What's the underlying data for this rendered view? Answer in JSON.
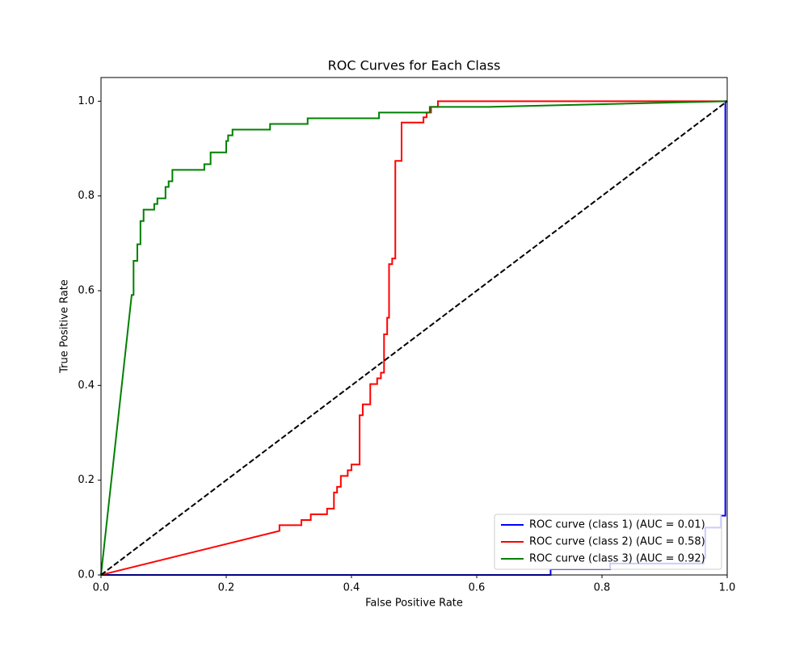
{
  "chart_data": {
    "type": "line",
    "title": "ROC Curves for Each Class",
    "xlabel": "False Positive Rate",
    "ylabel": "True Positive Rate",
    "xlim": [
      0,
      1
    ],
    "ylim": [
      0,
      1.05
    ],
    "xticks": [
      {
        "value": 0,
        "label": "0.0"
      },
      0.2,
      0.4,
      0.6,
      0.8,
      {
        "value": 1,
        "label": "1.0"
      }
    ],
    "yticks": [
      {
        "value": 0,
        "label": "0.0"
      },
      0.2,
      0.4,
      0.6,
      0.8,
      {
        "value": 1,
        "label": "1.0"
      }
    ],
    "grid": false,
    "legend_position": "lower right",
    "series": [
      {
        "name": "ROC curve (class 1) (AUC = 0.01)",
        "color": "#0000ff",
        "x": [
          0,
          0.718,
          0.718,
          0.813,
          0.813,
          0.962,
          0.962,
          0.965,
          0.965,
          0.99,
          0.99,
          0.997,
          0.997,
          1
        ],
        "values": [
          0,
          0,
          0.012,
          0.012,
          0.024,
          0.024,
          0.036,
          0.036,
          0.1,
          0.1,
          0.125,
          0.125,
          1,
          1
        ]
      },
      {
        "name": "ROC curve (class 2) (AUC = 0.58)",
        "color": "#ff0000",
        "x": [
          0,
          0.285,
          0.285,
          0.32,
          0.32,
          0.335,
          0.335,
          0.361,
          0.361,
          0.372,
          0.372,
          0.377,
          0.377,
          0.383,
          0.383,
          0.394,
          0.394,
          0.4,
          0.4,
          0.413,
          0.413,
          0.418,
          0.418,
          0.43,
          0.43,
          0.441,
          0.441,
          0.447,
          0.447,
          0.452,
          0.452,
          0.457,
          0.457,
          0.46,
          0.46,
          0.465,
          0.465,
          0.47,
          0.47,
          0.48,
          0.48,
          0.515,
          0.515,
          0.52,
          0.52,
          0.527,
          0.527,
          0.538,
          0.538,
          1
        ],
        "values": [
          0,
          0.093,
          0.105,
          0.105,
          0.116,
          0.116,
          0.128,
          0.128,
          0.14,
          0.14,
          0.174,
          0.174,
          0.186,
          0.186,
          0.209,
          0.209,
          0.221,
          0.221,
          0.233,
          0.233,
          0.337,
          0.337,
          0.36,
          0.36,
          0.403,
          0.403,
          0.415,
          0.415,
          0.427,
          0.427,
          0.508,
          0.508,
          0.543,
          0.543,
          0.656,
          0.656,
          0.668,
          0.668,
          0.874,
          0.874,
          0.955,
          0.955,
          0.966,
          0.966,
          0.976,
          0.976,
          0.988,
          0.988,
          1,
          1
        ]
      },
      {
        "name": "ROC curve (class 3) (AUC = 0.92)",
        "color": "#008000",
        "x": [
          0,
          0.049,
          0.052,
          0.052,
          0.058,
          0.058,
          0.063,
          0.063,
          0.068,
          0.068,
          0.085,
          0.085,
          0.09,
          0.09,
          0.103,
          0.103,
          0.108,
          0.108,
          0.114,
          0.114,
          0.165,
          0.165,
          0.175,
          0.175,
          0.2,
          0.2,
          0.203,
          0.203,
          0.21,
          0.21,
          0.27,
          0.27,
          0.33,
          0.33,
          0.444,
          0.444,
          0.525,
          0.525,
          0.62,
          1
        ],
        "values": [
          0,
          0.591,
          0.591,
          0.663,
          0.663,
          0.698,
          0.698,
          0.747,
          0.747,
          0.771,
          0.771,
          0.783,
          0.783,
          0.795,
          0.795,
          0.819,
          0.819,
          0.831,
          0.831,
          0.855,
          0.855,
          0.867,
          0.867,
          0.892,
          0.892,
          0.916,
          0.916,
          0.928,
          0.928,
          0.94,
          0.94,
          0.952,
          0.952,
          0.964,
          0.964,
          0.976,
          0.976,
          0.988,
          0.988,
          1
        ]
      },
      {
        "color": "#000000",
        "dashed": true,
        "x": [
          0,
          1
        ],
        "values": [
          0,
          1
        ]
      }
    ]
  }
}
